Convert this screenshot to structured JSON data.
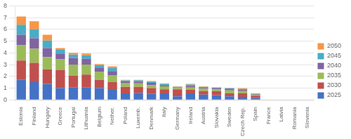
{
  "chart_data": {
    "type": "bar",
    "categories": [
      "Estonia",
      "Finland",
      "Hungary",
      "Greece",
      "Portugal",
      "Lithuania",
      "Belgium",
      "Nether.",
      "Poland",
      "Luxemb.",
      "Denmark",
      "Italy",
      "Germany",
      "Ireland",
      "Austria",
      "Slovakia",
      "Sweden",
      "Czech Rep.",
      "Spain",
      "France",
      "Latvia",
      "Romania",
      "Slovenia"
    ],
    "series": [
      {
        "name": "2025",
        "color": "#4472c4",
        "values": [
          1.7,
          1.5,
          1.35,
          1.0,
          1.05,
          1.05,
          1.0,
          0.85,
          0.55,
          0.6,
          0.5,
          0.55,
          0.3,
          0.55,
          0.45,
          0.4,
          0.3,
          0.25,
          0.15,
          0.0,
          0.0,
          0.0,
          0.0
        ]
      },
      {
        "name": "2030",
        "color": "#c0504d",
        "values": [
          1.65,
          1.65,
          1.25,
          1.55,
          1.0,
          1.1,
          0.7,
          0.65,
          0.55,
          0.5,
          0.5,
          0.35,
          0.6,
          0.3,
          0.3,
          0.35,
          0.25,
          0.3,
          0.2,
          0.0,
          0.0,
          0.0,
          0.0
        ]
      },
      {
        "name": "2035",
        "color": "#9bbb59",
        "values": [
          1.3,
          1.2,
          1.05,
          0.9,
          0.95,
          0.85,
          0.7,
          0.6,
          0.35,
          0.3,
          0.25,
          0.25,
          0.1,
          0.2,
          0.2,
          0.15,
          0.25,
          0.2,
          0.1,
          0.0,
          0.0,
          0.0,
          0.0
        ]
      },
      {
        "name": "2040",
        "color": "#8064a2",
        "values": [
          0.9,
          0.9,
          0.75,
          0.5,
          0.55,
          0.5,
          0.35,
          0.35,
          0.15,
          0.15,
          0.2,
          0.1,
          0.05,
          0.15,
          0.1,
          0.1,
          0.15,
          0.1,
          0.05,
          0.0,
          0.0,
          0.0,
          0.0
        ]
      },
      {
        "name": "2045",
        "color": "#4bacc6",
        "values": [
          0.85,
          0.75,
          0.65,
          0.3,
          0.3,
          0.3,
          0.2,
          0.25,
          0.05,
          0.1,
          0.1,
          0.1,
          0.05,
          0.1,
          0.05,
          0.05,
          0.05,
          0.08,
          0.03,
          0.0,
          0.0,
          0.0,
          0.0
        ]
      },
      {
        "name": "2050",
        "color": "#f79646",
        "values": [
          0.7,
          0.7,
          0.5,
          0.15,
          0.15,
          0.15,
          0.1,
          0.15,
          0.05,
          0.05,
          0.05,
          0.05,
          0.05,
          0.05,
          0.05,
          0.03,
          0.02,
          0.07,
          0.02,
          0.0,
          0.0,
          0.0,
          0.0
        ]
      }
    ],
    "ylim": [
      0,
      8
    ],
    "yticks": [
      0,
      1,
      2,
      3,
      4,
      5,
      6,
      7,
      8
    ],
    "grid": true,
    "stacked": true,
    "legend": "right"
  }
}
